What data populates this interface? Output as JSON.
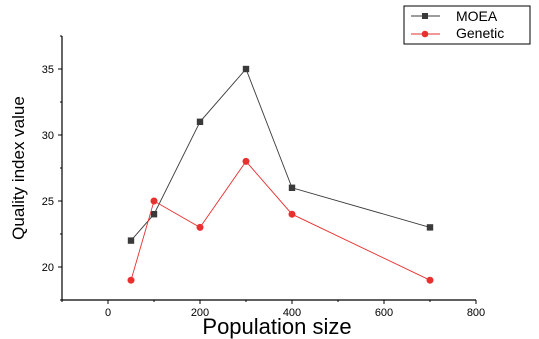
{
  "chart_data": {
    "type": "line",
    "xlabel": "Population size",
    "ylabel": "Quality index value",
    "xlim": [
      -100,
      800
    ],
    "ylim": [
      17.5,
      37.5
    ],
    "xticks": [
      0,
      200,
      400,
      600,
      800
    ],
    "yticks": [
      20,
      25,
      30,
      35
    ],
    "grid": false,
    "legend_position": "top-right, outside plot",
    "series": [
      {
        "name": "MOEA",
        "marker": "square",
        "color": "#3a3a3a",
        "x": [
          50,
          100,
          200,
          300,
          400,
          700
        ],
        "y": [
          22,
          24,
          31,
          35,
          26,
          23
        ]
      },
      {
        "name": "Genetic",
        "marker": "circle",
        "color": "#e8302f",
        "x": [
          50,
          100,
          200,
          300,
          400,
          700
        ],
        "y": [
          19,
          25,
          23,
          28,
          24,
          19
        ]
      }
    ]
  }
}
